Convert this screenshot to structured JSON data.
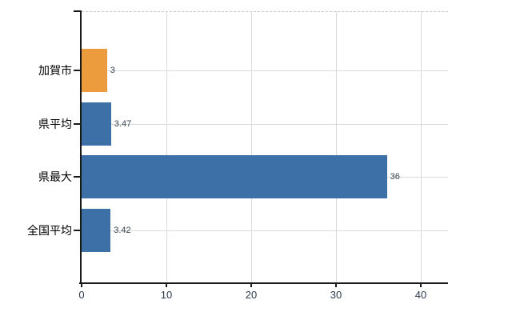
{
  "chart_data": {
    "type": "bar",
    "orientation": "horizontal",
    "title": "",
    "xlabel": "",
    "ylabel": "",
    "categories": [
      "加賀市",
      "県平均",
      "県最大",
      "全国平均"
    ],
    "values": [
      3,
      3.47,
      36,
      3.42
    ],
    "value_labels": [
      "3",
      "3.47",
      "36",
      "3.42"
    ],
    "bar_colors": [
      "#EC9B3D",
      "#3E70A8",
      "#3E70A8",
      "#3E70A8"
    ],
    "x_ticks": [
      "0",
      "10",
      "20",
      "30",
      "40"
    ],
    "x_tick_values": [
      0,
      10,
      20,
      30,
      40
    ],
    "xlim": [
      0,
      43.2
    ],
    "grid": true,
    "legend": "none"
  },
  "colors": {
    "highlight_bar": "#EC9B3D",
    "default_bar": "#3E70A8",
    "axis": "#1a1a1a",
    "gridline_horizontal": "#d7ded7",
    "gridline_vertical": "#dadada",
    "top_boundary_dashed": "#c9c9c9",
    "value_label": "#39424f",
    "x_tick_label": "#2e3b4e",
    "category_label": "#000000"
  }
}
